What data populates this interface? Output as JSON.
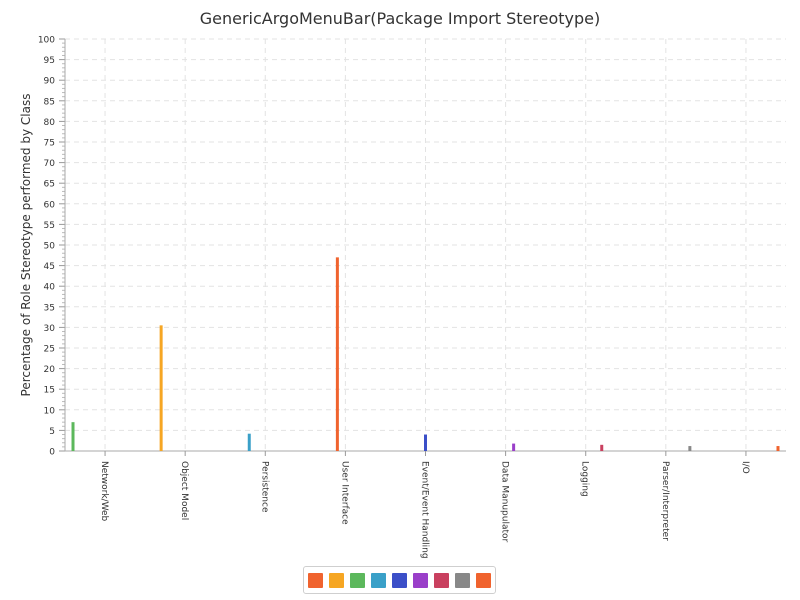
{
  "chart_data": {
    "type": "bar",
    "title": "GenericArgoMenuBar(Package Import Stereotype)",
    "xlabel": "",
    "ylabel": "Percentage of Role Stereotype performed by Class",
    "ylim": [
      0,
      100
    ],
    "ytick_step": 5,
    "grid": true,
    "legend_position": "bottom",
    "categories": [
      "Network/Web",
      "Object Model",
      "Persistence",
      "User Interface",
      "Event/Event Handling",
      "Data Manupulator",
      "Logging",
      "Parser/Interpreter",
      "I/O"
    ],
    "series": [
      {
        "values": [
          7.0,
          0,
          0,
          0,
          0,
          0,
          0,
          0,
          0
        ],
        "color": "#5cb85c"
      },
      {
        "values": [
          0,
          30.5,
          0,
          0,
          0,
          0,
          0,
          0,
          0
        ],
        "color": "#f6a623"
      },
      {
        "values": [
          0,
          0,
          4.2,
          0,
          0,
          0,
          0,
          0,
          0
        ],
        "color": "#3aa0c8"
      },
      {
        "values": [
          0,
          0,
          0,
          47.0,
          0,
          0,
          0,
          0,
          0
        ],
        "color": "#f0632e"
      },
      {
        "values": [
          0,
          0,
          0,
          0,
          4.0,
          0,
          0,
          0,
          0
        ],
        "color": "#3b4fc8"
      },
      {
        "values": [
          0,
          0,
          0,
          0,
          0,
          1.8,
          0,
          0,
          0
        ],
        "color": "#9a3fc9"
      },
      {
        "values": [
          0,
          0,
          0,
          0,
          0,
          0,
          1.5,
          0,
          0
        ],
        "color": "#c9405f"
      },
      {
        "values": [
          0,
          0,
          0,
          0,
          0,
          0,
          0,
          1.2,
          0
        ],
        "color": "#888888"
      },
      {
        "values": [
          0,
          0,
          0,
          0,
          0,
          0,
          0,
          0,
          1.2
        ],
        "color": "#f0632e"
      }
    ],
    "legend_swatches": [
      "#f0632e",
      "#f6a623",
      "#5cb85c",
      "#3aa0c8",
      "#3b4fc8",
      "#9a3fc9",
      "#c9405f",
      "#888888",
      "#f0632e"
    ]
  }
}
